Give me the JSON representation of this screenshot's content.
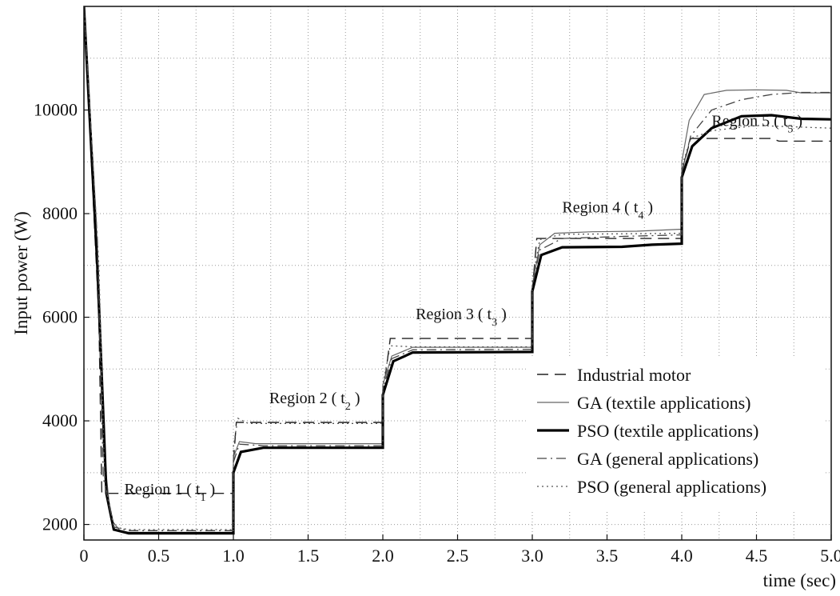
{
  "chart_data": {
    "type": "line",
    "title": "",
    "xlabel": "time (sec)",
    "ylabel": "Input power (W)",
    "xlim": [
      0,
      5.0
    ],
    "ylim": [
      1700,
      12000
    ],
    "grid": true,
    "legend_position": "bottom-right",
    "x_ticks": [
      {
        "value": 0,
        "label": "0"
      },
      {
        "value": 0.5,
        "label": "0.5"
      },
      {
        "value": 1.0,
        "label": "1.0"
      },
      {
        "value": 1.5,
        "label": "1.5"
      },
      {
        "value": 2.0,
        "label": "2.0"
      },
      {
        "value": 2.5,
        "label": "2.5"
      },
      {
        "value": 3.0,
        "label": "3.0"
      },
      {
        "value": 3.5,
        "label": "3.5"
      },
      {
        "value": 4.0,
        "label": "4.0"
      },
      {
        "value": 4.5,
        "label": "4.5"
      },
      {
        "value": 5.0,
        "label": "5.0"
      }
    ],
    "y_ticks": [
      {
        "value": 2000,
        "label": "2000"
      },
      {
        "value": 4000,
        "label": "4000"
      },
      {
        "value": 6000,
        "label": "6000"
      },
      {
        "value": 8000,
        "label": "8000"
      },
      {
        "value": 10000,
        "label": "10000"
      }
    ],
    "annotations": [
      {
        "text": "Region 1",
        "sub": "1",
        "x": 0.27,
        "y": 2580
      },
      {
        "text": "Region 2",
        "sub": "2",
        "x": 1.24,
        "y": 4340
      },
      {
        "text": "Region 3",
        "sub": "3",
        "x": 2.22,
        "y": 5960
      },
      {
        "text": "Region 4",
        "sub": "4",
        "x": 3.2,
        "y": 8020
      },
      {
        "text": "Region 5",
        "sub": "5",
        "x": 4.2,
        "y": 9690
      }
    ],
    "series": [
      {
        "name": "Industrial motor",
        "style": "dashed",
        "color": "#222222",
        "points": [
          [
            0.0,
            12000
          ],
          [
            0.1,
            6000
          ],
          [
            0.12,
            2600
          ],
          [
            1.0,
            2600
          ],
          [
            1.0,
            3200
          ],
          [
            1.02,
            3970
          ],
          [
            2.0,
            3970
          ],
          [
            2.0,
            4500
          ],
          [
            2.05,
            5590
          ],
          [
            3.0,
            5590
          ],
          [
            3.0,
            6500
          ],
          [
            3.03,
            7520
          ],
          [
            4.0,
            7520
          ],
          [
            4.0,
            8800
          ],
          [
            4.06,
            9450
          ],
          [
            4.6,
            9450
          ],
          [
            4.65,
            9400
          ],
          [
            5.0,
            9400
          ]
        ]
      },
      {
        "name": "GA (textile applications)",
        "style": "solid-thin",
        "color": "#666666",
        "points": [
          [
            0.0,
            12000
          ],
          [
            0.08,
            8000
          ],
          [
            0.13,
            3500
          ],
          [
            0.18,
            2100
          ],
          [
            0.25,
            1850
          ],
          [
            1.0,
            1850
          ],
          [
            1.0,
            3300
          ],
          [
            1.04,
            3600
          ],
          [
            1.15,
            3560
          ],
          [
            2.0,
            3560
          ],
          [
            2.0,
            4700
          ],
          [
            2.06,
            5250
          ],
          [
            2.2,
            5420
          ],
          [
            3.0,
            5420
          ],
          [
            3.0,
            6600
          ],
          [
            3.05,
            7400
          ],
          [
            3.15,
            7620
          ],
          [
            3.4,
            7650
          ],
          [
            3.7,
            7660
          ],
          [
            4.0,
            7700
          ],
          [
            4.0,
            9000
          ],
          [
            4.05,
            9800
          ],
          [
            4.15,
            10300
          ],
          [
            4.3,
            10380
          ],
          [
            4.5,
            10390
          ],
          [
            4.7,
            10380
          ],
          [
            4.8,
            10330
          ],
          [
            5.0,
            10330
          ]
        ]
      },
      {
        "name": "PSO (textile applications)",
        "style": "solid-thick",
        "color": "#000000",
        "points": [
          [
            0.0,
            12000
          ],
          [
            0.09,
            7000
          ],
          [
            0.15,
            2600
          ],
          [
            0.2,
            1900
          ],
          [
            0.3,
            1830
          ],
          [
            1.0,
            1830
          ],
          [
            1.0,
            3000
          ],
          [
            1.05,
            3400
          ],
          [
            1.2,
            3480
          ],
          [
            2.0,
            3480
          ],
          [
            2.0,
            4500
          ],
          [
            2.07,
            5150
          ],
          [
            2.2,
            5320
          ],
          [
            3.0,
            5330
          ],
          [
            3.0,
            6500
          ],
          [
            3.06,
            7200
          ],
          [
            3.2,
            7350
          ],
          [
            3.6,
            7360
          ],
          [
            3.8,
            7400
          ],
          [
            4.0,
            7420
          ],
          [
            4.0,
            8700
          ],
          [
            4.07,
            9300
          ],
          [
            4.2,
            9650
          ],
          [
            4.4,
            9880
          ],
          [
            4.6,
            9900
          ],
          [
            4.8,
            9830
          ],
          [
            5.0,
            9820
          ]
        ]
      },
      {
        "name": "GA (general applications)",
        "style": "dashdot",
        "color": "#444444",
        "points": [
          [
            0.0,
            12000
          ],
          [
            0.09,
            7500
          ],
          [
            0.13,
            2900
          ],
          [
            0.2,
            1950
          ],
          [
            0.3,
            1880
          ],
          [
            1.0,
            1880
          ],
          [
            1.0,
            3200
          ],
          [
            1.04,
            3550
          ],
          [
            1.2,
            3520
          ],
          [
            2.0,
            3520
          ],
          [
            2.0,
            4600
          ],
          [
            2.06,
            5200
          ],
          [
            2.2,
            5370
          ],
          [
            3.0,
            5380
          ],
          [
            3.0,
            6600
          ],
          [
            3.05,
            7300
          ],
          [
            3.2,
            7520
          ],
          [
            3.6,
            7560
          ],
          [
            4.0,
            7590
          ],
          [
            4.0,
            8800
          ],
          [
            4.06,
            9500
          ],
          [
            4.2,
            10000
          ],
          [
            4.4,
            10200
          ],
          [
            4.6,
            10300
          ],
          [
            4.8,
            10340
          ],
          [
            5.0,
            10340
          ]
        ]
      },
      {
        "name": "PSO (general applications)",
        "style": "dotted",
        "color": "#555555",
        "points": [
          [
            0.0,
            12000
          ],
          [
            0.1,
            7000
          ],
          [
            0.14,
            2800
          ],
          [
            0.2,
            1950
          ],
          [
            0.3,
            1900
          ],
          [
            1.0,
            1900
          ],
          [
            1.0,
            3500
          ],
          [
            1.03,
            4050
          ],
          [
            1.1,
            3950
          ],
          [
            2.0,
            3950
          ],
          [
            2.0,
            4700
          ],
          [
            2.05,
            5450
          ],
          [
            2.2,
            5430
          ],
          [
            3.0,
            5430
          ],
          [
            3.0,
            6700
          ],
          [
            3.05,
            7500
          ],
          [
            3.2,
            7600
          ],
          [
            4.0,
            7620
          ],
          [
            4.0,
            8900
          ],
          [
            4.06,
            9450
          ],
          [
            4.2,
            9600
          ],
          [
            4.5,
            9700
          ],
          [
            4.7,
            9680
          ],
          [
            5.0,
            9650
          ]
        ]
      }
    ]
  }
}
